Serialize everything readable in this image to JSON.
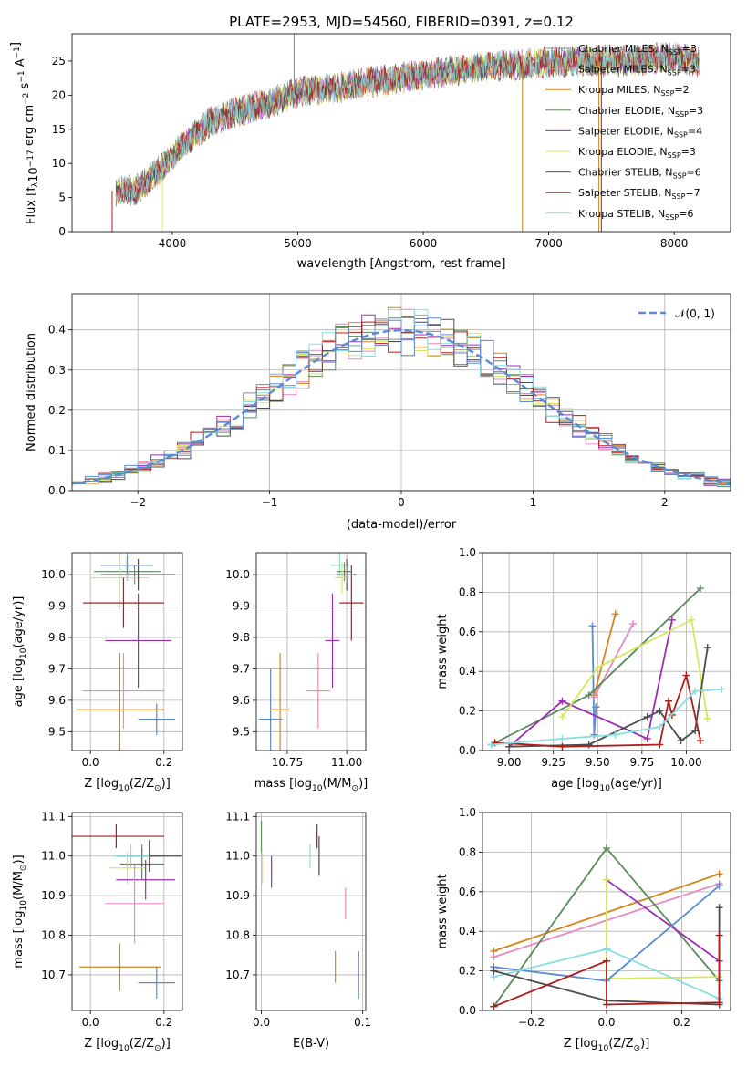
{
  "colors": {
    "Chabrier MILES": "#888888",
    "Salpeter MILES": "#e68ac2",
    "Kroupa MILES": "#d7831a",
    "Chabrier ELODIE": "#5b8a5b",
    "Salpeter ELODIE": "#9b2fb1",
    "Kroupa ELODIE": "#d8e85c",
    "Chabrier STELIB": "#4d4d4d",
    "Salpeter STELIB": "#b01c1c",
    "Kroupa STELIB": "#88dde0",
    "blue": "#5b8ad6",
    "normal": "#5b8ad6"
  },
  "chart_data": [
    {
      "id": "spectrum",
      "type": "line",
      "title": "PLATE=2953, MJD=54560, FIBERID=0391, z=0.12",
      "xlabel": "wavelength [Angstrom, rest frame]",
      "ylabel": "Flux [fλ10−17 erg cm−2 s−1 A−1]",
      "xlim": [
        3200,
        8450
      ],
      "ylim": [
        0,
        29
      ],
      "xticks": [
        4000,
        5000,
        6000,
        7000,
        8000
      ],
      "yticks": [
        0,
        5,
        10,
        15,
        20,
        25
      ],
      "legend_position": "top-right",
      "legend": [
        {
          "base": "Chabrier MILES, N",
          "sub": "SSP",
          "suffix": "=3"
        },
        {
          "base": "Salpeter MILES, N",
          "sub": "SSP",
          "suffix": "=3"
        },
        {
          "base": "Kroupa MILES, N",
          "sub": "SSP",
          "suffix": "=2"
        },
        {
          "base": "Chabrier ELODIE, N",
          "sub": "SSP",
          "suffix": "=3"
        },
        {
          "base": "Salpeter ELODIE, N",
          "sub": "SSP",
          "suffix": "=4"
        },
        {
          "base": "Kroupa ELODIE, N",
          "sub": "SSP",
          "suffix": "=3"
        },
        {
          "base": "Chabrier STELIB, N",
          "sub": "SSP",
          "suffix": "=6"
        },
        {
          "base": "Salpeter STELIB, N",
          "sub": "SSP",
          "suffix": "=7"
        },
        {
          "base": "Kroupa STELIB, N",
          "sub": "SSP",
          "suffix": "=6"
        }
      ],
      "series_keys": [
        "Chabrier MILES",
        "Salpeter MILES",
        "Kroupa MILES",
        "Chabrier ELODIE",
        "Salpeter ELODIE",
        "Kroupa ELODIE",
        "Chabrier STELIB",
        "Salpeter STELIB",
        "Kroupa STELIB"
      ],
      "continuum": {
        "x": [
          3550,
          3700,
          3900,
          4100,
          4300,
          4500,
          4800,
          5000,
          5300,
          5600,
          6000,
          6400,
          6800,
          7200,
          7600,
          8000,
          8200
        ],
        "y": [
          6,
          6,
          9,
          13,
          16,
          17.5,
          19,
          20.5,
          21,
          22,
          23,
          24,
          24.5,
          25,
          25,
          25.5,
          25
        ]
      }
    },
    {
      "id": "residuals",
      "type": "histogram",
      "xlabel": "(data-model)/error",
      "ylabel": "Normed distribution",
      "xlim": [
        -2.5,
        2.5
      ],
      "ylim": [
        0,
        0.49
      ],
      "xticks": [
        -2,
        -1,
        0,
        1,
        2
      ],
      "yticks": [
        0.0,
        0.1,
        0.2,
        0.3,
        0.4
      ],
      "legend_position": "top-right",
      "legend_label": "𝒩(0, 1)",
      "bin_width": 0.1
    },
    {
      "id": "age-vs-Z",
      "type": "errorbar",
      "xlabel_parts": [
        "Z [log",
        "10",
        "(Z/Z",
        "⊙",
        ")]"
      ],
      "ylabel_parts": [
        "age  [log",
        "10",
        "(age/yr)]"
      ],
      "xlim": [
        -0.05,
        0.25
      ],
      "ylim": [
        9.44,
        10.07
      ],
      "xticks": [
        0.0,
        0.2
      ],
      "yticks": [
        9.5,
        9.6,
        9.7,
        9.8,
        9.9,
        10.0
      ],
      "points": [
        {
          "key": "Chabrier MILES",
          "x": 0.12,
          "xerr": 0.08,
          "y": 10.0,
          "yerr": 0.03
        },
        {
          "key": "Salpeter MILES",
          "x": 0.09,
          "xerr": 0.11,
          "y": 9.63,
          "yerr": 0.12
        },
        {
          "key": "Kroupa MILES",
          "x": 0.08,
          "xerr": 0.12,
          "y": 9.57,
          "yerr": 0.18
        },
        {
          "key": "Chabrier ELODIE",
          "x": 0.1,
          "xerr": 0.09,
          "y": 10.01,
          "yerr": 0.03
        },
        {
          "key": "Salpeter ELODIE",
          "x": 0.13,
          "xerr": 0.09,
          "y": 9.79,
          "yerr": 0.15
        },
        {
          "key": "Kroupa ELODIE",
          "x": 0.08,
          "xerr": 0.08,
          "y": 9.99,
          "yerr": 0.1
        },
        {
          "key": "Chabrier STELIB",
          "x": 0.13,
          "xerr": 0.1,
          "y": 10.0,
          "yerr": 0.05
        },
        {
          "key": "Salpeter STELIB",
          "x": 0.09,
          "xerr": 0.11,
          "y": 9.91,
          "yerr": 0.08
        },
        {
          "key": "Kroupa STELIB",
          "x": 0.1,
          "xerr": 0.07,
          "y": 10.03,
          "yerr": 0.05
        },
        {
          "key": "blue",
          "x": 0.18,
          "xerr": 0.05,
          "y": 9.54,
          "yerr": 0.05
        },
        {
          "key": "blue",
          "x": 0.1,
          "xerr": 0.07,
          "y": 10.03,
          "yerr": 0.03
        }
      ]
    },
    {
      "id": "age-vs-mass",
      "type": "errorbar",
      "xlabel_parts": [
        "mass [log",
        "10",
        "(M/M",
        "⊙",
        ")]"
      ],
      "xlim": [
        10.62,
        11.08
      ],
      "ylim": [
        9.44,
        10.07
      ],
      "xticks": [
        10.75,
        11.0
      ],
      "yticks": [
        9.5,
        9.6,
        9.7,
        9.8,
        9.9,
        10.0
      ],
      "points": [
        {
          "key": "blue",
          "x": 10.68,
          "xerr": 0.05,
          "y": 9.54,
          "yerr": 0.16
        },
        {
          "key": "Kroupa MILES",
          "x": 10.72,
          "xerr": 0.04,
          "y": 9.57,
          "yerr": 0.18
        },
        {
          "key": "Salpeter MILES",
          "x": 10.88,
          "xerr": 0.05,
          "y": 9.63,
          "yerr": 0.12
        },
        {
          "key": "Salpeter ELODIE",
          "x": 10.94,
          "xerr": 0.03,
          "y": 9.79,
          "yerr": 0.15
        },
        {
          "key": "Salpeter STELIB",
          "x": 11.02,
          "xerr": 0.05,
          "y": 9.91,
          "yerr": 0.12
        },
        {
          "key": "Kroupa STELIB",
          "x": 10.97,
          "xerr": 0.04,
          "y": 10.03,
          "yerr": 0.04
        },
        {
          "key": "Chabrier STELIB",
          "x": 11.0,
          "xerr": 0.04,
          "y": 10.0,
          "yerr": 0.05
        },
        {
          "key": "Chabrier ELODIE",
          "x": 10.99,
          "xerr": 0.03,
          "y": 10.01,
          "yerr": 0.03
        },
        {
          "key": "Kroupa ELODIE",
          "x": 10.98,
          "xerr": 0.03,
          "y": 9.99,
          "yerr": 0.05
        },
        {
          "key": "Chabrier MILES",
          "x": 11.0,
          "xerr": 0.03,
          "y": 10.0,
          "yerr": 0.03
        }
      ]
    },
    {
      "id": "weight-vs-age",
      "type": "line",
      "xlabel_parts": [
        "age  [log",
        "10",
        "(age/yr)]"
      ],
      "ylabel": "mass weight",
      "xlim": [
        8.85,
        10.25
      ],
      "ylim": [
        0,
        1.0
      ],
      "xticks": [
        9.0,
        9.25,
        9.5,
        9.75,
        10.0
      ],
      "xtick_labels": [
        "9.00",
        "9.25",
        "9.50",
        "9.75",
        "10.00"
      ],
      "yticks": [
        0.0,
        0.2,
        0.4,
        0.6,
        0.8,
        1.0
      ],
      "series": [
        {
          "key": "blue",
          "x": [
            9.47,
            9.48,
            9.49
          ],
          "y": [
            0.63,
            0.08,
            0.22
          ]
        },
        {
          "key": "Kroupa MILES",
          "x": [
            9.48,
            9.6
          ],
          "y": [
            0.28,
            0.69
          ]
        },
        {
          "key": "Salpeter MILES",
          "x": [
            9.48,
            9.7
          ],
          "y": [
            0.27,
            0.64
          ]
        },
        {
          "key": "Chabrier ELODIE",
          "x": [
            8.9,
            9.45,
            10.08
          ],
          "y": [
            0.03,
            0.28,
            0.82
          ]
        },
        {
          "key": "Salpeter ELODIE",
          "x": [
            9.0,
            9.3,
            9.78,
            9.92
          ],
          "y": [
            0.02,
            0.25,
            0.06,
            0.66
          ]
        },
        {
          "key": "Kroupa ELODIE",
          "x": [
            9.3,
            9.5,
            10.03,
            10.12
          ],
          "y": [
            0.17,
            0.42,
            0.66,
            0.16
          ]
        },
        {
          "key": "Chabrier STELIB",
          "x": [
            9.0,
            9.45,
            9.78,
            9.85,
            9.97,
            10.05,
            10.12
          ],
          "y": [
            0.02,
            0.03,
            0.17,
            0.2,
            0.05,
            0.1,
            0.52
          ]
        },
        {
          "key": "Salpeter STELIB",
          "x": [
            8.92,
            9.3,
            9.85,
            9.9,
            9.92,
            10.0,
            10.08
          ],
          "y": [
            0.04,
            0.02,
            0.03,
            0.25,
            0.18,
            0.38,
            0.05
          ]
        },
        {
          "key": "Kroupa STELIB",
          "x": [
            8.9,
            9.3,
            9.6,
            9.85,
            10.05,
            10.2
          ],
          "y": [
            0.03,
            0.06,
            0.08,
            0.12,
            0.3,
            0.31
          ]
        }
      ]
    },
    {
      "id": "mass-vs-Z",
      "type": "errorbar",
      "xlabel_parts": [
        "Z [log",
        "10",
        "(Z/Z",
        "⊙",
        ")]"
      ],
      "ylabel_parts": [
        "mass [log",
        "10",
        "(M/M",
        "⊙",
        ")]"
      ],
      "xlim": [
        -0.05,
        0.25
      ],
      "ylim": [
        10.61,
        11.11
      ],
      "xticks": [
        0.0,
        0.2
      ],
      "yticks": [
        10.7,
        10.8,
        10.9,
        11.0,
        11.1
      ],
      "points": [
        {
          "key": "Salpeter STELIB",
          "x": 0.07,
          "xerr": 0.13,
          "y": 11.05,
          "yerr": 0.03
        },
        {
          "key": "Chabrier MILES",
          "x": 0.14,
          "xerr": 0.06,
          "y": 11.0,
          "yerr": 0.03
        },
        {
          "key": "Chabrier STELIB",
          "x": 0.16,
          "xerr": 0.09,
          "y": 11.0,
          "yerr": 0.04
        },
        {
          "key": "Chabrier ELODIE",
          "x": 0.14,
          "xerr": 0.06,
          "y": 10.98,
          "yerr": 0.04
        },
        {
          "key": "Kroupa STELIB",
          "x": 0.11,
          "xerr": 0.05,
          "y": 11.0,
          "yerr": 0.03
        },
        {
          "key": "Kroupa ELODIE",
          "x": 0.1,
          "xerr": 0.05,
          "y": 10.97,
          "yerr": 0.04
        },
        {
          "key": "Salpeter ELODIE",
          "x": 0.15,
          "xerr": 0.08,
          "y": 10.94,
          "yerr": 0.05
        },
        {
          "key": "Salpeter MILES",
          "x": 0.12,
          "xerr": 0.08,
          "y": 10.88,
          "yerr": 0.1
        },
        {
          "key": "Kroupa MILES",
          "x": 0.08,
          "xerr": 0.11,
          "y": 10.72,
          "yerr": 0.06
        },
        {
          "key": "blue",
          "x": 0.18,
          "xerr": 0.05,
          "y": 10.68,
          "yerr": 0.04
        }
      ]
    },
    {
      "id": "mass-vs-EBV",
      "type": "errorbar",
      "xlabel": "E(B-V)",
      "xlim": [
        -0.005,
        0.103
      ],
      "ylim": [
        10.61,
        11.11
      ],
      "xticks": [
        0.0,
        0.1
      ],
      "yticks": [
        10.7,
        10.8,
        10.9,
        11.0,
        11.1
      ],
      "points": [
        {
          "key": "Chabrier ELODIE",
          "x": 0.0,
          "xerr": 0.0,
          "y": 11.05,
          "yerr": 0.04
        },
        {
          "key": "Kroupa ELODIE",
          "x": 0.001,
          "xerr": 0.0,
          "y": 10.97,
          "yerr": 0.04
        },
        {
          "key": "Salpeter ELODIE",
          "x": 0.01,
          "xerr": 0.0,
          "y": 10.96,
          "yerr": 0.04
        },
        {
          "key": "Kroupa STELIB",
          "x": 0.048,
          "xerr": 0.0,
          "y": 11.0,
          "yerr": 0.03
        },
        {
          "key": "Chabrier STELIB",
          "x": 0.057,
          "xerr": 0.0,
          "y": 11.0,
          "yerr": 0.05
        },
        {
          "key": "Salpeter STELIB",
          "x": 0.055,
          "xerr": 0.0,
          "y": 11.05,
          "yerr": 0.03
        },
        {
          "key": "Salpeter MILES",
          "x": 0.083,
          "xerr": 0.0,
          "y": 10.88,
          "yerr": 0.04
        },
        {
          "key": "Kroupa MILES",
          "x": 0.073,
          "xerr": 0.0,
          "y": 10.72,
          "yerr": 0.04
        },
        {
          "key": "blue",
          "x": 0.096,
          "xerr": 0.0,
          "y": 10.7,
          "yerr": 0.06
        }
      ]
    },
    {
      "id": "weight-vs-Z",
      "type": "line",
      "xlabel_parts": [
        "Z [log",
        "10",
        "(Z/Z",
        "⊙",
        ")]"
      ],
      "ylabel": "mass weight",
      "xlim": [
        -0.33,
        0.33
      ],
      "ylim": [
        0,
        1.0
      ],
      "xticks": [
        -0.2,
        0.0,
        0.2
      ],
      "xtick_labels": [
        "−0.2",
        "0.0",
        "0.2"
      ],
      "yticks": [
        0.0,
        0.2,
        0.4,
        0.6,
        0.8,
        1.0
      ],
      "series": [
        {
          "key": "Kroupa MILES",
          "x": [
            -0.3,
            0.3
          ],
          "y": [
            0.3,
            0.69
          ]
        },
        {
          "key": "Salpeter MILES",
          "x": [
            -0.3,
            0.3
          ],
          "y": [
            0.27,
            0.64
          ]
        },
        {
          "key": "Chabrier ELODIE",
          "x": [
            -0.3,
            0.0,
            0.3
          ],
          "y": [
            0.02,
            0.82,
            0.15
          ]
        },
        {
          "key": "Salpeter ELODIE",
          "x": [
            0.0,
            0.3
          ],
          "y": [
            0.66,
            0.25
          ]
        },
        {
          "key": "Kroupa ELODIE",
          "x": [
            0.0,
            0.0,
            0.3
          ],
          "y": [
            0.66,
            0.16,
            0.17
          ]
        },
        {
          "key": "blue",
          "x": [
            -0.3,
            0.0,
            0.3
          ],
          "y": [
            0.22,
            0.15,
            0.63
          ]
        },
        {
          "key": "Kroupa STELIB",
          "x": [
            -0.3,
            0.0,
            0.3
          ],
          "y": [
            0.17,
            0.31,
            0.06
          ]
        },
        {
          "key": "Chabrier STELIB",
          "x": [
            -0.3,
            0.0,
            0.3,
            0.3
          ],
          "y": [
            0.2,
            0.05,
            0.03,
            0.52
          ]
        },
        {
          "key": "Salpeter STELIB",
          "x": [
            -0.3,
            0.0,
            0.0,
            0.3,
            0.3
          ],
          "y": [
            0.02,
            0.25,
            0.03,
            0.04,
            0.38
          ]
        }
      ]
    }
  ]
}
